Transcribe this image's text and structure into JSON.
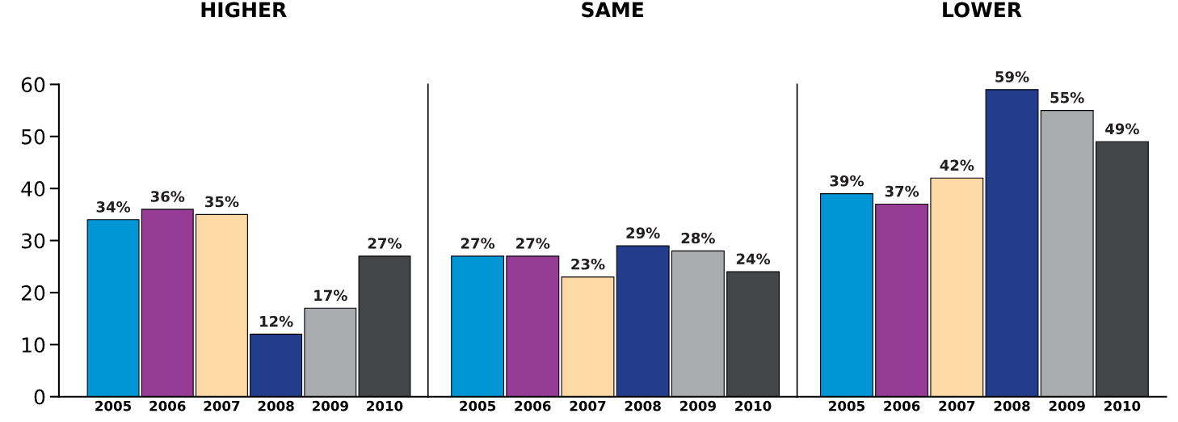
{
  "chart_data": [
    {
      "type": "bar",
      "title": "HIGHER",
      "categories": [
        "2005",
        "2006",
        "2007",
        "2008",
        "2009",
        "2010"
      ],
      "values": [
        34,
        36,
        35,
        12,
        17,
        27
      ],
      "colors": [
        "#0096d6",
        "#963c96",
        "#fdd9a5",
        "#233c8c",
        "#a9abae",
        "#434547"
      ],
      "value_labels": [
        "34%",
        "36%",
        "35%",
        "12%",
        "17%",
        "27%"
      ],
      "ylim": [
        0,
        60
      ],
      "yticks": [
        0,
        10,
        20,
        30,
        40,
        50,
        60
      ],
      "grid": false,
      "legend": false
    },
    {
      "type": "bar",
      "title": "SAME",
      "categories": [
        "2005",
        "2006",
        "2007",
        "2008",
        "2009",
        "2010"
      ],
      "values": [
        27,
        27,
        23,
        29,
        28,
        24
      ],
      "colors": [
        "#0096d6",
        "#963c96",
        "#fdd9a5",
        "#233c8c",
        "#a9abae",
        "#434547"
      ],
      "value_labels": [
        "27%",
        "27%",
        "23%",
        "29%",
        "28%",
        "24%"
      ],
      "ylim": [
        0,
        60
      ],
      "tick_labels": "x",
      "grid": false,
      "legend": false
    },
    {
      "type": "bar",
      "title": "LOWER",
      "categories": [
        "2005",
        "2006",
        "2007",
        "2008",
        "2009",
        "2010"
      ],
      "values": [
        39,
        37,
        42,
        59,
        55,
        49
      ],
      "colors": [
        "#0096d6",
        "#963c96",
        "#fdd9a5",
        "#233c8c",
        "#a9abae",
        "#434547"
      ],
      "value_labels": [
        "39%",
        "37%",
        "42%",
        "59%",
        "55%",
        "49%"
      ],
      "ylim": [
        0,
        60
      ],
      "tick_labels": "x",
      "grid": false,
      "legend": false
    }
  ]
}
